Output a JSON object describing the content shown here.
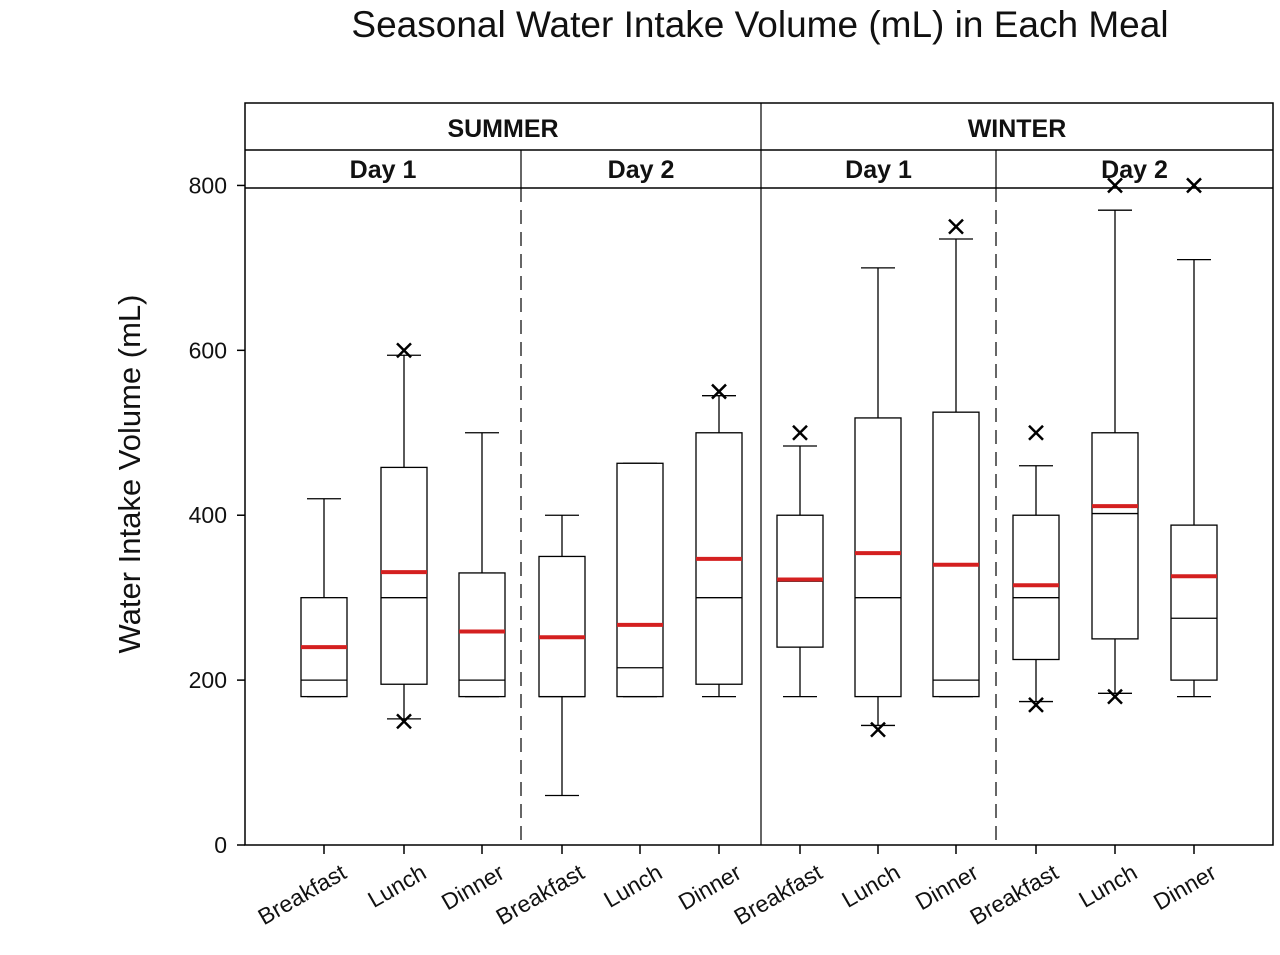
{
  "chart_data": {
    "type": "box",
    "title": "Seasonal Water Intake Volume (mL) in Each Meal",
    "ylabel": "Water Intake Volume (mL)",
    "xlabel": "",
    "ylim": [
      0,
      900
    ],
    "yticks": [
      0,
      200,
      400,
      600,
      800
    ],
    "grid": false,
    "legend": "none",
    "colors": {
      "box": "#000000",
      "mean": "#d42020",
      "outlier": "#000000"
    },
    "seasons": [
      {
        "label": "SUMMER",
        "days": [
          {
            "label": "Day 1",
            "meals": [
              {
                "category": "Breakfast",
                "whisker_low": 180,
                "q1": 180,
                "median": 200,
                "q3": 300,
                "whisker_high": 420,
                "mean": 240,
                "outliers": []
              },
              {
                "category": "Lunch",
                "whisker_low": 153,
                "q1": 195,
                "median": 300,
                "q3": 458,
                "whisker_high": 594,
                "mean": 331,
                "outliers": [
                  150,
                  600
                ]
              },
              {
                "category": "Dinner",
                "whisker_low": 180,
                "q1": 180,
                "median": 200,
                "q3": 330,
                "whisker_high": 500,
                "mean": 259,
                "outliers": []
              }
            ]
          },
          {
            "label": "Day 2",
            "meals": [
              {
                "category": "Breakfast",
                "whisker_low": 60,
                "q1": 180,
                "median": 180,
                "q3": 350,
                "whisker_high": 400,
                "mean": 252,
                "outliers": []
              },
              {
                "category": "Lunch",
                "whisker_low": 180,
                "q1": 180,
                "median": 215,
                "q3": 463,
                "whisker_high": 463,
                "mean": 267,
                "outliers": []
              },
              {
                "category": "Dinner",
                "whisker_low": 180,
                "q1": 195,
                "median": 300,
                "q3": 500,
                "whisker_high": 545,
                "mean": 347,
                "outliers": [
                  550
                ]
              }
            ]
          }
        ]
      },
      {
        "label": "WINTER",
        "days": [
          {
            "label": "Day 1",
            "meals": [
              {
                "category": "Breakfast",
                "whisker_low": 180,
                "q1": 240,
                "median": 320,
                "q3": 400,
                "whisker_high": 484,
                "mean": 322,
                "outliers": [
                  500
                ]
              },
              {
                "category": "Lunch",
                "whisker_low": 145,
                "q1": 180,
                "median": 300,
                "q3": 518,
                "whisker_high": 700,
                "mean": 354,
                "outliers": [
                  140
                ]
              },
              {
                "category": "Dinner",
                "whisker_low": 180,
                "q1": 180,
                "median": 200,
                "q3": 525,
                "whisker_high": 735,
                "mean": 340,
                "outliers": [
                  750
                ]
              }
            ]
          },
          {
            "label": "Day 2",
            "meals": [
              {
                "category": "Breakfast",
                "whisker_low": 174,
                "q1": 225,
                "median": 300,
                "q3": 400,
                "whisker_high": 460,
                "mean": 315,
                "outliers": [
                  170,
                  500
                ]
              },
              {
                "category": "Lunch",
                "whisker_low": 184,
                "q1": 250,
                "median": 402,
                "q3": 500,
                "whisker_high": 770,
                "mean": 411,
                "outliers": [
                  180,
                  800
                ]
              },
              {
                "category": "Dinner",
                "whisker_low": 180,
                "q1": 200,
                "median": 275,
                "q3": 388,
                "whisker_high": 710,
                "mean": 326,
                "outliers": [
                  800
                ]
              }
            ]
          }
        ]
      }
    ]
  }
}
